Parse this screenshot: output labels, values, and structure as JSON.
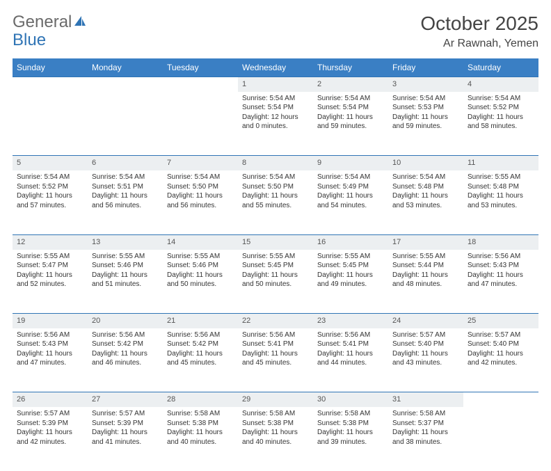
{
  "logo": {
    "text1": "General",
    "text2": "Blue"
  },
  "title": "October 2025",
  "location": "Ar Rawnah, Yemen",
  "colors": {
    "header_bg": "#3a7fc4",
    "header_text": "#ffffff",
    "daynum_bg": "#eceff1",
    "rule": "#2f74b5",
    "logo_gray": "#6a6a6a",
    "logo_blue": "#2f74b5"
  },
  "day_headers": [
    "Sunday",
    "Monday",
    "Tuesday",
    "Wednesday",
    "Thursday",
    "Friday",
    "Saturday"
  ],
  "weeks": [
    [
      null,
      null,
      null,
      {
        "n": "1",
        "sr": "5:54 AM",
        "ss": "5:54 PM",
        "dl": "12 hours and 0 minutes."
      },
      {
        "n": "2",
        "sr": "5:54 AM",
        "ss": "5:54 PM",
        "dl": "11 hours and 59 minutes."
      },
      {
        "n": "3",
        "sr": "5:54 AM",
        "ss": "5:53 PM",
        "dl": "11 hours and 59 minutes."
      },
      {
        "n": "4",
        "sr": "5:54 AM",
        "ss": "5:52 PM",
        "dl": "11 hours and 58 minutes."
      }
    ],
    [
      {
        "n": "5",
        "sr": "5:54 AM",
        "ss": "5:52 PM",
        "dl": "11 hours and 57 minutes."
      },
      {
        "n": "6",
        "sr": "5:54 AM",
        "ss": "5:51 PM",
        "dl": "11 hours and 56 minutes."
      },
      {
        "n": "7",
        "sr": "5:54 AM",
        "ss": "5:50 PM",
        "dl": "11 hours and 56 minutes."
      },
      {
        "n": "8",
        "sr": "5:54 AM",
        "ss": "5:50 PM",
        "dl": "11 hours and 55 minutes."
      },
      {
        "n": "9",
        "sr": "5:54 AM",
        "ss": "5:49 PM",
        "dl": "11 hours and 54 minutes."
      },
      {
        "n": "10",
        "sr": "5:54 AM",
        "ss": "5:48 PM",
        "dl": "11 hours and 53 minutes."
      },
      {
        "n": "11",
        "sr": "5:55 AM",
        "ss": "5:48 PM",
        "dl": "11 hours and 53 minutes."
      }
    ],
    [
      {
        "n": "12",
        "sr": "5:55 AM",
        "ss": "5:47 PM",
        "dl": "11 hours and 52 minutes."
      },
      {
        "n": "13",
        "sr": "5:55 AM",
        "ss": "5:46 PM",
        "dl": "11 hours and 51 minutes."
      },
      {
        "n": "14",
        "sr": "5:55 AM",
        "ss": "5:46 PM",
        "dl": "11 hours and 50 minutes."
      },
      {
        "n": "15",
        "sr": "5:55 AM",
        "ss": "5:45 PM",
        "dl": "11 hours and 50 minutes."
      },
      {
        "n": "16",
        "sr": "5:55 AM",
        "ss": "5:45 PM",
        "dl": "11 hours and 49 minutes."
      },
      {
        "n": "17",
        "sr": "5:55 AM",
        "ss": "5:44 PM",
        "dl": "11 hours and 48 minutes."
      },
      {
        "n": "18",
        "sr": "5:56 AM",
        "ss": "5:43 PM",
        "dl": "11 hours and 47 minutes."
      }
    ],
    [
      {
        "n": "19",
        "sr": "5:56 AM",
        "ss": "5:43 PM",
        "dl": "11 hours and 47 minutes."
      },
      {
        "n": "20",
        "sr": "5:56 AM",
        "ss": "5:42 PM",
        "dl": "11 hours and 46 minutes."
      },
      {
        "n": "21",
        "sr": "5:56 AM",
        "ss": "5:42 PM",
        "dl": "11 hours and 45 minutes."
      },
      {
        "n": "22",
        "sr": "5:56 AM",
        "ss": "5:41 PM",
        "dl": "11 hours and 45 minutes."
      },
      {
        "n": "23",
        "sr": "5:56 AM",
        "ss": "5:41 PM",
        "dl": "11 hours and 44 minutes."
      },
      {
        "n": "24",
        "sr": "5:57 AM",
        "ss": "5:40 PM",
        "dl": "11 hours and 43 minutes."
      },
      {
        "n": "25",
        "sr": "5:57 AM",
        "ss": "5:40 PM",
        "dl": "11 hours and 42 minutes."
      }
    ],
    [
      {
        "n": "26",
        "sr": "5:57 AM",
        "ss": "5:39 PM",
        "dl": "11 hours and 42 minutes."
      },
      {
        "n": "27",
        "sr": "5:57 AM",
        "ss": "5:39 PM",
        "dl": "11 hours and 41 minutes."
      },
      {
        "n": "28",
        "sr": "5:58 AM",
        "ss": "5:38 PM",
        "dl": "11 hours and 40 minutes."
      },
      {
        "n": "29",
        "sr": "5:58 AM",
        "ss": "5:38 PM",
        "dl": "11 hours and 40 minutes."
      },
      {
        "n": "30",
        "sr": "5:58 AM",
        "ss": "5:38 PM",
        "dl": "11 hours and 39 minutes."
      },
      {
        "n": "31",
        "sr": "5:58 AM",
        "ss": "5:37 PM",
        "dl": "11 hours and 38 minutes."
      },
      null
    ]
  ],
  "labels": {
    "sunrise": "Sunrise:",
    "sunset": "Sunset:",
    "daylight": "Daylight:"
  }
}
